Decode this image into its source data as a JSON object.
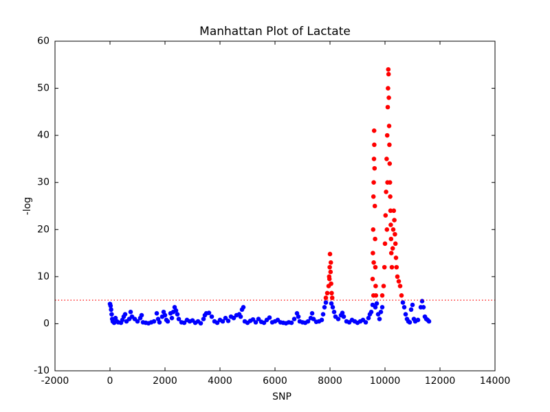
{
  "chart_data": {
    "type": "scatter",
    "title": "Manhattan Plot of Lactate",
    "x_label": "SNP",
    "y_label": "-log",
    "xlim": [
      -2000,
      14000
    ],
    "xticks": [
      -2000,
      0,
      2000,
      4000,
      6000,
      8000,
      10000,
      12000,
      14000
    ],
    "ylim": [
      -10,
      60
    ],
    "yticks": [
      -10,
      0,
      10,
      20,
      30,
      40,
      50,
      60
    ],
    "threshold": 5,
    "threshold_color": "#ff0000",
    "series": [
      {
        "color": "#0000ff",
        "x": [
          0,
          20,
          40,
          60,
          80,
          100,
          150,
          200,
          250,
          300,
          400,
          450,
          500,
          550,
          600,
          700,
          750,
          800,
          900,
          1000,
          1100,
          1150,
          1200,
          1300,
          1400,
          1500,
          1600,
          1700,
          1750,
          1800,
          1900,
          1950,
          2000,
          2050,
          2100,
          2200,
          2250,
          2300,
          2350,
          2400,
          2450,
          2500,
          2600,
          2700,
          2800,
          2900,
          3000,
          3100,
          3200,
          3300,
          3400,
          3450,
          3500,
          3600,
          3700,
          3800,
          3900,
          4000,
          4100,
          4200,
          4300,
          4400,
          4500,
          4600,
          4700,
          4750,
          4800,
          4850,
          4900,
          5000,
          5100,
          5200,
          5300,
          5400,
          5500,
          5600,
          5700,
          5800,
          5900,
          6000,
          6100,
          6200,
          6300,
          6400,
          6500,
          6600,
          6700,
          6800,
          6850,
          6900,
          7000,
          7100,
          7200,
          7300,
          7350,
          7400,
          7500,
          7600,
          7700,
          7750,
          7800,
          7850,
          8050,
          8100,
          8150,
          8200,
          8300,
          8400,
          8450,
          8500,
          8600,
          8700,
          8800,
          8900,
          9000,
          9100,
          9200,
          9300,
          9400,
          9450,
          9500,
          9550,
          9650,
          9700,
          9750,
          9800,
          9850,
          9900,
          10650,
          10700,
          10750,
          10800,
          10850,
          10900,
          10950,
          11000,
          11050,
          11100,
          11200,
          11300,
          11350,
          11400,
          11450,
          11500,
          11550,
          11600
        ],
        "values": [
          4.2,
          3.8,
          3,
          2,
          1,
          0.5,
          0.2,
          1.2,
          0.5,
          0.3,
          0.2,
          0.8,
          1.5,
          2,
          0.5,
          1,
          2.5,
          1.5,
          1,
          0.5,
          1.2,
          1.8,
          0.3,
          0.2,
          0.1,
          0.3,
          0.5,
          2.2,
          1,
          0.3,
          1.5,
          2.5,
          1.8,
          0.8,
          0.5,
          2.2,
          1.2,
          2.5,
          3.5,
          2.8,
          2,
          1,
          0.3,
          0.2,
          0.8,
          0.5,
          0.7,
          0.2,
          0.5,
          0.1,
          1,
          1.8,
          2.2,
          2.3,
          1.5,
          0.5,
          0.2,
          0.8,
          0.5,
          1.2,
          0.6,
          1.5,
          1.2,
          1.8,
          2,
          1.5,
          3,
          3.5,
          0.5,
          0.2,
          0.6,
          0.9,
          0.3,
          1,
          0.4,
          0.2,
          0.8,
          1.3,
          0.3,
          0.5,
          0.8,
          0.3,
          0.2,
          0.1,
          0.3,
          0.2,
          1,
          2.2,
          1.5,
          0.5,
          0.3,
          0.2,
          0.5,
          1.2,
          2.2,
          1,
          0.4,
          0.5,
          0.8,
          2,
          3.5,
          4.5,
          4.3,
          3.5,
          2.5,
          1.5,
          1,
          1.8,
          2.3,
          1.5,
          0.5,
          0.3,
          0.8,
          0.5,
          0.2,
          0.5,
          0.8,
          0.3,
          1.2,
          2,
          2.5,
          4,
          3.5,
          4.3,
          2,
          1,
          2.5,
          3.5,
          4.5,
          3.5,
          2,
          1,
          0.5,
          0.3,
          3,
          4,
          1,
          0.5,
          0.8,
          3.5,
          4.8,
          3.5,
          1.5,
          1,
          0.8,
          0.5
        ]
      },
      {
        "color": "#ff0000",
        "x": [
          7850,
          7900,
          7950,
          7970,
          7990,
          8000,
          8020,
          8040,
          8060,
          8080,
          8030,
          7980,
          9550,
          9560,
          9570,
          9580,
          9590,
          9600,
          9605,
          9610,
          9620,
          9630,
          9640,
          9650,
          9660,
          9670,
          9580,
          9590,
          9900,
          9950,
          9980,
          10000,
          10020,
          10040,
          10060,
          10080,
          10100,
          10110,
          10120,
          10130,
          10140,
          10150,
          10160,
          10170,
          10180,
          10190,
          10200,
          10210,
          10220,
          10230,
          10250,
          10280,
          10300,
          10320,
          10340,
          10360,
          10380,
          10400,
          10420,
          10450,
          10500,
          10550,
          10600,
          10070,
          10090
        ],
        "values": [
          5.5,
          6.5,
          8,
          10,
          12,
          14.8,
          11,
          8.5,
          6.5,
          5.5,
          13,
          9.5,
          9.5,
          15,
          20,
          27,
          30,
          35,
          41,
          38,
          33,
          25,
          18,
          12,
          8,
          6,
          6,
          13,
          6,
          8,
          12,
          17,
          23,
          28,
          35,
          40,
          46,
          50,
          54,
          53,
          48,
          42,
          38,
          34,
          30,
          27,
          24,
          21,
          18,
          15,
          12,
          16,
          20,
          24,
          22,
          19,
          17,
          14,
          12,
          10,
          9,
          8,
          6,
          20,
          30
        ]
      }
    ]
  }
}
